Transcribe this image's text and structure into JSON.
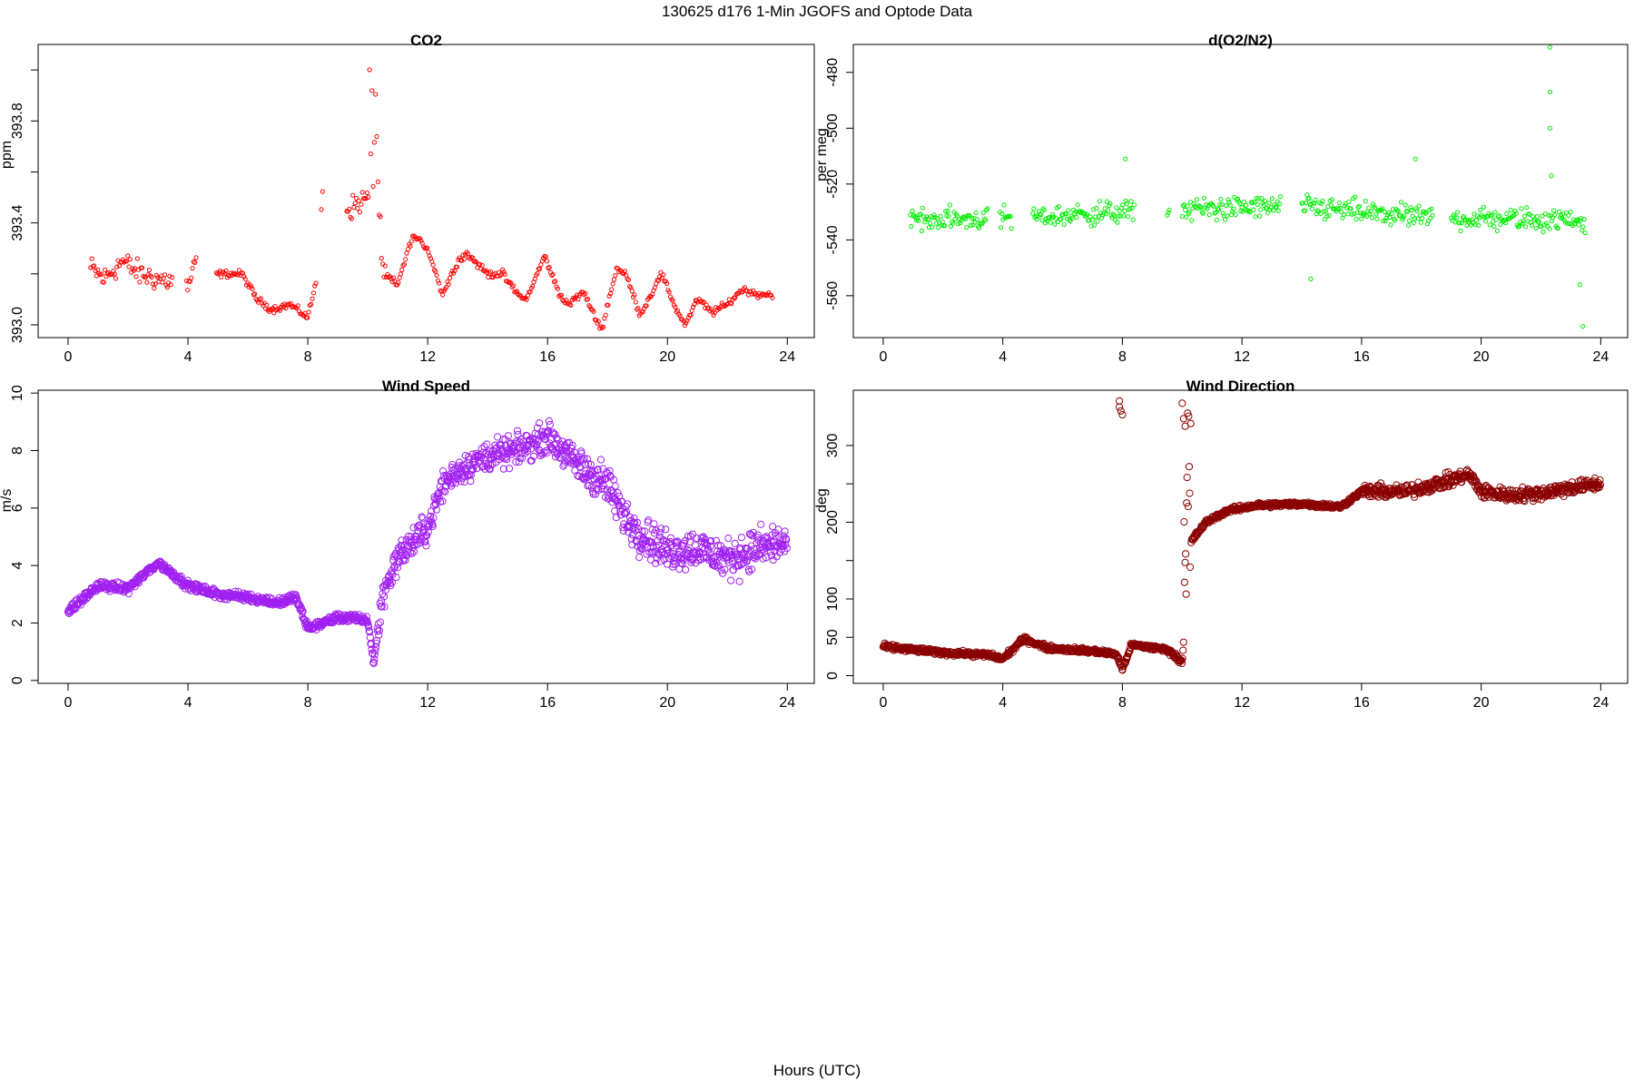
{
  "page": {
    "title": "130625   d176   1-Min  JGOFS and Optode Data",
    "x_caption": "Hours (UTC)"
  },
  "chart_data": [
    {
      "type": "scatter",
      "title": "CO2",
      "xlabel": "",
      "ylabel": "ppm",
      "xlim": [
        -1,
        24.9
      ],
      "ylim": [
        392.95,
        394.1
      ],
      "xticks": [
        0,
        4,
        8,
        12,
        16,
        20,
        24
      ],
      "yticks": [
        393.0,
        393.4,
        393.8
      ],
      "yticks_minor": [
        393.2,
        393.6,
        394.0
      ],
      "marker": "small-circle",
      "color": "#ff0000",
      "series_kind": "co2",
      "grid": false
    },
    {
      "type": "scatter",
      "title": "d(O2/N2)",
      "xlabel": "",
      "ylabel": "per meg",
      "xlim": [
        -1,
        24.9
      ],
      "ylim": [
        -575,
        -470
      ],
      "xticks": [
        0,
        4,
        8,
        12,
        16,
        20,
        24
      ],
      "yticks": [
        -560,
        -540,
        -520,
        -500,
        -480
      ],
      "marker": "small-circle",
      "color": "#00ee00",
      "series_kind": "o2",
      "grid": false
    },
    {
      "type": "scatter",
      "title": "Wind Speed",
      "xlabel": "",
      "ylabel": "m/s",
      "xlim": [
        -1,
        24.9
      ],
      "ylim": [
        -0.1,
        10.1
      ],
      "xticks": [
        0,
        4,
        8,
        12,
        16,
        20,
        24
      ],
      "yticks": [
        0,
        2,
        4,
        6,
        8,
        10
      ],
      "marker": "circle",
      "color": "#a020f0",
      "series_kind": "wspd",
      "grid": false
    },
    {
      "type": "scatter",
      "title": "Wind Direction",
      "xlabel": "",
      "ylabel": "deg",
      "xlim": [
        -1,
        24.9
      ],
      "ylim": [
        -10,
        372
      ],
      "xticks": [
        0,
        4,
        8,
        12,
        16,
        20,
        24
      ],
      "yticks": [
        0,
        50,
        100,
        200,
        300
      ],
      "yticks_minor": [
        150,
        250
      ],
      "marker": "circle",
      "color": "#8b0000",
      "series_kind": "wdir",
      "grid": false
    }
  ]
}
